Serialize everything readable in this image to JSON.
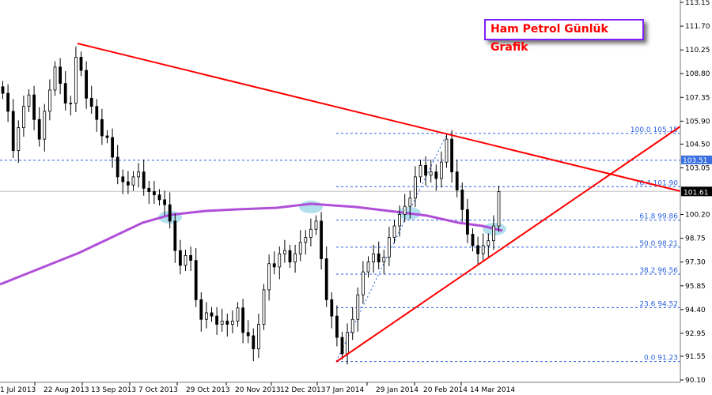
{
  "chart_data": {
    "type": "candlestick",
    "title": "Ham Petrol Günlük Grafik",
    "x_tick_labels": [
      "1 Jul 2013",
      "22 Aug 2013",
      "13 Sep 2013",
      "7 Oct 2013",
      "29 Oct 2013",
      "20 Nov 2013",
      "12 Dec 2013",
      "7 Jan 2014",
      "29 Jan 2014",
      "20 Feb 2014",
      "14 Mar 2014"
    ],
    "y_tick_labels": [
      "113.15",
      "111.70",
      "110.25",
      "108.80",
      "107.35",
      "105.90",
      "104.50",
      "103.05",
      "100.20",
      "98.75",
      "97.30",
      "95.85",
      "94.40",
      "92.95",
      "91.55",
      "90.10"
    ],
    "ylim": [
      90.1,
      113.15
    ],
    "closes": [
      107.6,
      106.5,
      104.1,
      105.5,
      106.8,
      107.5,
      106.0,
      104.8,
      106.5,
      107.8,
      109.2,
      108.2,
      107.0,
      107.0,
      109.8,
      109.0,
      107.3,
      106.8,
      106.0,
      105.0,
      104.9,
      103.7,
      102.5,
      102.2,
      102.0,
      102.5,
      102.8,
      101.8,
      101.6,
      101.4,
      101.1,
      100.8,
      99.8,
      98.0,
      97.1,
      97.7,
      97.4,
      95.0,
      93.8,
      94.2,
      94.0,
      93.5,
      93.7,
      93.5,
      93.7,
      94.5,
      93.0,
      92.8,
      92.0,
      93.5,
      95.6,
      97.2,
      97.0,
      97.8,
      98.0,
      97.3,
      97.8,
      98.5,
      98.8,
      99.3,
      99.8,
      97.5,
      95.0,
      94.0,
      92.7,
      91.7,
      93.0,
      93.8,
      95.3,
      96.7,
      97.3,
      97.8,
      97.3,
      97.6,
      98.8,
      99.5,
      100.2,
      100.7,
      101.2,
      102.5,
      103.2,
      102.6,
      102.8,
      102.4,
      103.4,
      104.8,
      102.8,
      101.7,
      100.5,
      99.0,
      98.3,
      97.8,
      98.3,
      98.6,
      99.5,
      101.6
    ],
    "current_price": "101.61",
    "marked_level": "103.51",
    "fibonacci": [
      {
        "label": "100.0 105.15",
        "price": 105.15
      },
      {
        "label": "76.4 101.90",
        "price": 101.9
      },
      {
        "label": "61.8 99.86",
        "price": 99.86
      },
      {
        "label": "50.0 98.21",
        "price": 98.21
      },
      {
        "label": "38.2 96.56",
        "price": 96.56
      },
      {
        "label": "23.6 94.52",
        "price": 94.52
      },
      {
        "label": "0.0 91.23",
        "price": 91.23
      }
    ],
    "colors": {
      "trendline": "#ff0000",
      "moving_average": "#b04fd8",
      "fib": "#2a5fe0",
      "highlight": "#9fd8e8",
      "title_border": "#7f1fff",
      "title_text": "#ff0000"
    }
  }
}
